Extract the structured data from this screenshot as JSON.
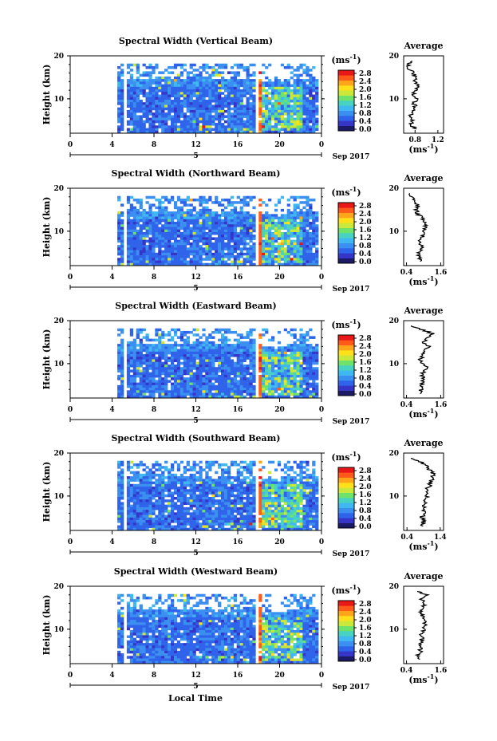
{
  "figure": {
    "xlabel": "Local Time",
    "date_label": "Sep 2017",
    "day_label": "5",
    "units_label": "(ms",
    "units_exp": "-1",
    "units_close": ")",
    "avg_xlabel": "(ms",
    "avg_title": "Average",
    "ylabel": "Height (km)"
  },
  "colors": {
    "scale": [
      "#1a1a66",
      "#3535c8",
      "#2f63ea",
      "#3a8ff0",
      "#3fb7f0",
      "#47d2c2",
      "#6ee26a",
      "#c9e83a",
      "#ffe01a",
      "#ffa51a",
      "#ff5a1a",
      "#e81818"
    ],
    "nodata": "#ffffff"
  },
  "chart_data": [
    {
      "type": "heatmap",
      "title": "Spectral Width (Vertical Beam)",
      "xlabel": "Local Time",
      "ylabel": "Height (km)",
      "xlim": [
        0,
        24
      ],
      "ylim": [
        2,
        20
      ],
      "xticks": [
        "0",
        "4",
        "8",
        "12",
        "16",
        "20",
        "0"
      ],
      "yticks": [
        "20",
        "10"
      ],
      "colorbar": {
        "label": "(ms-1)",
        "ticks": [
          "2.8",
          "2.4",
          "2.0",
          "1.6",
          "1.2",
          "0.8",
          "0.4",
          "0.0"
        ]
      },
      "average": {
        "title": "Average",
        "xlabel": "(ms-1)",
        "xticks": [
          "0.8",
          "1.2"
        ],
        "yticks": [
          "20",
          "10"
        ],
        "xlim": [
          0.6,
          1.3
        ],
        "height": [
          3,
          4,
          5,
          6,
          7,
          8,
          9,
          10,
          11,
          12,
          13,
          14,
          15,
          16,
          17,
          18,
          19
        ],
        "value": [
          0.82,
          0.72,
          0.75,
          0.72,
          0.74,
          0.8,
          0.78,
          0.82,
          0.76,
          0.8,
          0.85,
          0.78,
          0.82,
          0.76,
          0.7,
          0.68,
          0.72
        ]
      }
    },
    {
      "type": "heatmap",
      "title": "Spectral Width (Northward Beam)",
      "xlabel": "Local Time",
      "ylabel": "Height (km)",
      "xlim": [
        0,
        24
      ],
      "ylim": [
        2,
        20
      ],
      "xticks": [
        "0",
        "4",
        "8",
        "12",
        "16",
        "20",
        "0"
      ],
      "yticks": [
        "20",
        "10"
      ],
      "colorbar": {
        "label": "(ms-1)",
        "ticks": [
          "2.8",
          "2.4",
          "2.0",
          "1.6",
          "1.2",
          "0.8",
          "0.4",
          "0.0"
        ]
      },
      "average": {
        "title": "Average",
        "xlabel": "(ms-1)",
        "xticks": [
          "0.4",
          "1.6"
        ],
        "yticks": [
          "20",
          "10"
        ],
        "xlim": [
          0.3,
          1.7
        ],
        "height": [
          3,
          4,
          5,
          6,
          7,
          8,
          9,
          10,
          11,
          12,
          13,
          14,
          15,
          16,
          17,
          18,
          19
        ],
        "value": [
          0.9,
          0.85,
          0.8,
          0.95,
          0.9,
          0.85,
          1.0,
          1.05,
          1.1,
          1.0,
          0.95,
          0.8,
          0.75,
          0.8,
          0.7,
          0.6,
          0.45
        ]
      }
    },
    {
      "type": "heatmap",
      "title": "Spectral Width (Eastward Beam)",
      "xlabel": "Local Time",
      "ylabel": "Height (km)",
      "xlim": [
        0,
        24
      ],
      "ylim": [
        2,
        20
      ],
      "xticks": [
        "0",
        "4",
        "8",
        "12",
        "16",
        "20",
        "0"
      ],
      "yticks": [
        "20",
        "10"
      ],
      "colorbar": {
        "label": "(ms-1)",
        "ticks": [
          "2.8",
          "2.4",
          "2.0",
          "1.6",
          "1.2",
          "0.8",
          "0.4",
          "0.0"
        ]
      },
      "average": {
        "title": "Average",
        "xlabel": "(ms-1)",
        "xticks": [
          "0.4",
          "1.6"
        ],
        "yticks": [
          "20",
          "10"
        ],
        "xlim": [
          0.3,
          1.7
        ],
        "height": [
          3,
          4,
          5,
          6,
          7,
          8,
          9,
          10,
          11,
          12,
          13,
          14,
          15,
          16,
          17,
          18,
          19
        ],
        "value": [
          0.85,
          0.9,
          0.95,
          1.0,
          0.95,
          1.0,
          1.1,
          0.95,
          0.9,
          1.0,
          1.05,
          1.2,
          1.0,
          1.1,
          1.3,
          0.9,
          0.5
        ]
      }
    },
    {
      "type": "heatmap",
      "title": "Spectral Width (Southward Beam)",
      "xlabel": "Local Time",
      "ylabel": "Height (km)",
      "xlim": [
        0,
        24
      ],
      "ylim": [
        2,
        20
      ],
      "xticks": [
        "0",
        "4",
        "8",
        "12",
        "16",
        "20",
        "0"
      ],
      "yticks": [
        "20",
        "10"
      ],
      "colorbar": {
        "label": "(ms-1)",
        "ticks": [
          "2.8",
          "2.4",
          "2.0",
          "1.6",
          "1.2",
          "0.8",
          "0.4",
          "0.0"
        ]
      },
      "average": {
        "title": "Average",
        "xlabel": "(ms-1)",
        "xticks": [
          "0.4",
          "1.4"
        ],
        "yticks": [
          "20",
          "10"
        ],
        "xlim": [
          0.3,
          1.5
        ],
        "height": [
          3,
          4,
          5,
          6,
          7,
          8,
          9,
          10,
          11,
          12,
          13,
          14,
          15,
          16,
          17,
          18,
          19
        ],
        "value": [
          0.85,
          0.9,
          0.85,
          0.9,
          0.95,
          0.9,
          0.95,
          1.0,
          0.95,
          1.05,
          1.1,
          1.15,
          1.2,
          1.1,
          1.0,
          0.8,
          0.5
        ]
      }
    },
    {
      "type": "heatmap",
      "title": "Spectral Width (Westward Beam)",
      "xlabel": "Local Time",
      "ylabel": "Height (km)",
      "xlim": [
        0,
        24
      ],
      "ylim": [
        2,
        20
      ],
      "xticks": [
        "0",
        "4",
        "8",
        "12",
        "16",
        "20",
        "0"
      ],
      "yticks": [
        "20",
        "10"
      ],
      "colorbar": {
        "label": "(ms-1)",
        "ticks": [
          "2.8",
          "2.4",
          "2.0",
          "1.6",
          "1.2",
          "0.8",
          "0.4",
          "0.0"
        ]
      },
      "average": {
        "title": "Average",
        "xlabel": "(ms-1)",
        "xticks": [
          "0.4",
          "1.6"
        ],
        "yticks": [
          "20",
          "10"
        ],
        "xlim": [
          0.3,
          1.7
        ],
        "height": [
          3,
          4,
          5,
          6,
          7,
          8,
          9,
          10,
          11,
          12,
          13,
          14,
          15,
          16,
          17,
          18,
          19
        ],
        "value": [
          0.85,
          0.8,
          0.9,
          0.85,
          0.9,
          0.95,
          0.9,
          1.0,
          1.1,
          1.0,
          0.95,
          0.9,
          0.95,
          1.05,
          0.9,
          1.2,
          0.6
        ]
      }
    }
  ]
}
